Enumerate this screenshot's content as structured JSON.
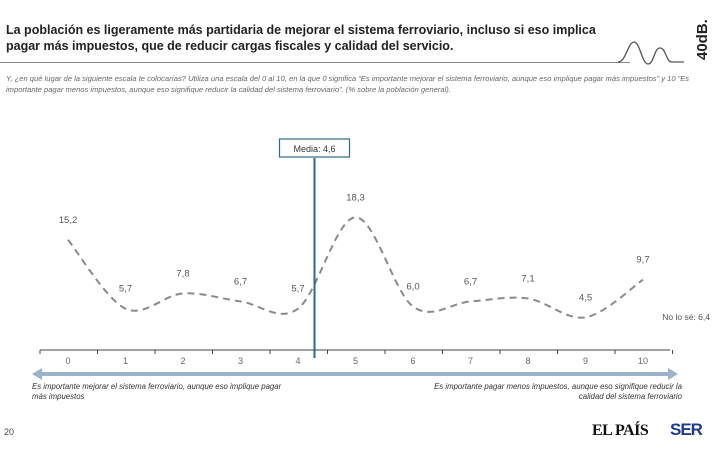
{
  "header": {
    "title": "La población es ligeramente más partidaria de mejorar el sistema ferroviario, incluso si eso implica pagar más impuestos, que de reducir cargas fiscales y calidad del servicio.",
    "subtitle": "Y, ¿en qué lugar de la siguiente escala te colocarías? Utiliza una escala del 0 al 10, en la que 0 significa “Es importante mejorar el sistema ferroviario, aunque eso implique pagar más impuestos” y 10 “Es importante pagar menos impuestos, aunque eso signifique reducir la calidad del sistema ferroviario”. (% sobre la población general).",
    "brand": "40dB."
  },
  "chart_data": {
    "type": "line",
    "categories": [
      "0",
      "1",
      "2",
      "3",
      "4",
      "5",
      "6",
      "7",
      "8",
      "9",
      "10"
    ],
    "values": [
      15.2,
      5.7,
      7.8,
      6.7,
      5.7,
      18.3,
      6.0,
      6.7,
      7.1,
      4.5,
      9.7
    ],
    "value_labels": [
      "15,2",
      "5,7",
      "7,8",
      "6,7",
      "5,7",
      "18,3",
      "6,0",
      "6,7",
      "7,1",
      "4,5",
      "9,7"
    ],
    "ylim": [
      0,
      20
    ],
    "line_style": "dashed",
    "line_color": "#8a8a8a",
    "mean": {
      "value": 4.6,
      "label": "Media: 4,6",
      "color": "#2e6a80"
    },
    "annotation": "No lo sé: 6,4",
    "scale_left": "Es importante mejorar el sistema ferroviario, aunque eso implique pagar más impuestos",
    "scale_right": "Es importante pagar menos impuestos, aunque eso signifique reducir la calidad del sistema ferroviario",
    "arrow_color": "#9bb3c8",
    "grid": false
  },
  "footer": {
    "page": "20",
    "logo_elpais": "EL PAÍS",
    "logo_ser": "SER"
  }
}
